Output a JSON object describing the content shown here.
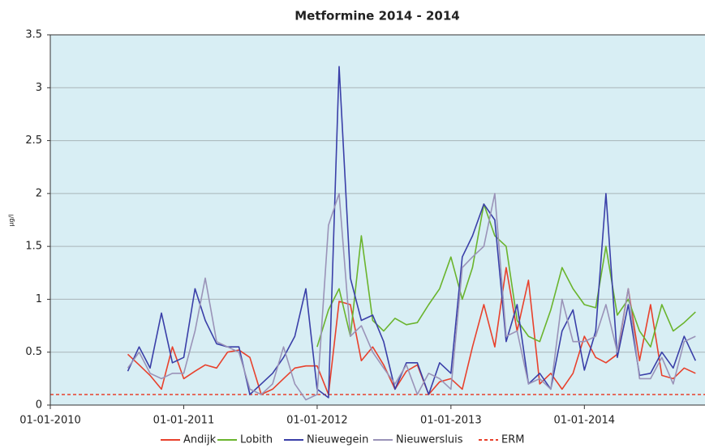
{
  "chart_data": {
    "type": "line",
    "title": "Metformine 2014 - 2014",
    "y_label": "µg/l",
    "x": [
      "2010-08-01",
      "2010-09-01",
      "2010-10-01",
      "2010-11-01",
      "2010-12-01",
      "2011-01-01",
      "2011-02-01",
      "2011-03-01",
      "2011-04-01",
      "2011-05-01",
      "2011-06-01",
      "2011-07-01",
      "2011-08-01",
      "2011-09-01",
      "2011-10-01",
      "2011-11-01",
      "2011-12-01",
      "2012-01-01",
      "2012-02-01",
      "2012-03-01",
      "2012-04-01",
      "2012-05-01",
      "2012-06-01",
      "2012-07-01",
      "2012-08-01",
      "2012-09-01",
      "2012-10-01",
      "2012-11-01",
      "2012-12-01",
      "2013-01-01",
      "2013-02-01",
      "2013-03-01",
      "2013-04-01",
      "2013-05-01",
      "2013-06-01",
      "2013-07-01",
      "2013-08-01",
      "2013-09-01",
      "2013-10-01",
      "2013-11-01",
      "2013-12-01",
      "2014-01-01",
      "2014-02-01",
      "2014-03-01",
      "2014-04-01",
      "2014-05-01",
      "2014-06-01",
      "2014-07-01",
      "2014-08-01",
      "2014-09-01",
      "2014-10-01",
      "2014-11-01"
    ],
    "series": [
      {
        "name": "Andijk",
        "color": "#e8412c",
        "values": [
          0.48,
          0.38,
          0.28,
          0.15,
          0.55,
          0.25,
          0.32,
          0.38,
          0.35,
          0.5,
          0.52,
          0.45,
          0.1,
          0.15,
          0.25,
          0.35,
          0.37,
          0.37,
          0.1,
          0.98,
          0.95,
          0.42,
          0.55,
          0.38,
          0.15,
          0.32,
          0.38,
          0.1,
          0.22,
          0.25,
          0.15,
          0.55,
          0.95,
          0.55,
          1.3,
          0.7,
          1.18,
          0.2,
          0.3,
          0.15,
          0.3,
          0.65,
          0.45,
          0.4,
          0.48,
          1.1,
          0.42,
          0.95,
          0.28,
          0.25,
          0.35,
          0.3
        ]
      },
      {
        "name": "Lobith",
        "color": "#6ab42d",
        "values": [
          null,
          null,
          null,
          null,
          null,
          null,
          null,
          null,
          null,
          null,
          null,
          null,
          null,
          null,
          null,
          null,
          null,
          0.55,
          0.9,
          1.1,
          0.65,
          1.6,
          0.8,
          0.7,
          0.82,
          0.76,
          0.78,
          0.95,
          1.1,
          1.4,
          1.0,
          1.3,
          1.9,
          1.6,
          1.5,
          0.8,
          0.65,
          0.6,
          0.9,
          1.3,
          1.1,
          0.95,
          0.92,
          1.5,
          0.85,
          1.0,
          0.7,
          0.55,
          0.95,
          0.7,
          0.78,
          0.88
        ]
      },
      {
        "name": "Nieuwegein",
        "color": "#3a3fa8",
        "values": [
          0.32,
          0.55,
          0.35,
          0.87,
          0.4,
          0.45,
          1.1,
          0.8,
          0.58,
          0.55,
          0.55,
          0.1,
          0.2,
          0.3,
          0.45,
          0.65,
          1.1,
          0.15,
          0.07,
          3.2,
          1.2,
          0.8,
          0.85,
          0.6,
          0.15,
          0.4,
          0.4,
          0.1,
          0.4,
          0.3,
          1.4,
          1.6,
          1.9,
          1.75,
          0.6,
          0.95,
          0.2,
          0.3,
          0.15,
          0.7,
          0.9,
          0.33,
          0.7,
          2.0,
          0.45,
          0.95,
          0.28,
          0.3,
          0.5,
          0.35,
          0.65,
          0.42
        ]
      },
      {
        "name": "Nieuwersluis",
        "color": "#9a93b8",
        "values": [
          0.35,
          0.5,
          0.3,
          0.25,
          0.3,
          0.3,
          0.7,
          1.2,
          0.6,
          0.55,
          0.5,
          0.15,
          0.1,
          0.2,
          0.55,
          0.2,
          0.05,
          0.1,
          1.7,
          2.0,
          0.65,
          0.75,
          0.5,
          0.35,
          0.2,
          0.38,
          0.1,
          0.3,
          0.25,
          0.15,
          1.3,
          1.4,
          1.5,
          2.0,
          0.65,
          0.7,
          0.2,
          0.25,
          0.15,
          1.0,
          0.6,
          0.6,
          0.65,
          0.95,
          0.5,
          1.1,
          0.25,
          0.25,
          0.45,
          0.2,
          0.6,
          0.65
        ]
      }
    ],
    "reference_lines": [
      {
        "name": "ERM",
        "value": 0.1,
        "color": "#e8412c",
        "dashed": true
      }
    ],
    "xlim": [
      "2010-01-01",
      "2014-11-27"
    ],
    "xticks": [
      {
        "value": "2010-01-01",
        "label": "01-01-2010"
      },
      {
        "value": "2011-01-01",
        "label": "01-01-2011"
      },
      {
        "value": "2012-01-01",
        "label": "01-01-2012"
      },
      {
        "value": "2013-01-01",
        "label": "01-01-2013"
      },
      {
        "value": "2014-01-01",
        "label": "01-01-2014"
      }
    ],
    "ylim": [
      0,
      3.5
    ],
    "yticks": [
      0,
      0.5,
      1,
      1.5,
      2,
      2.5,
      3,
      3.5
    ],
    "grid": true,
    "legend": "bottom"
  }
}
